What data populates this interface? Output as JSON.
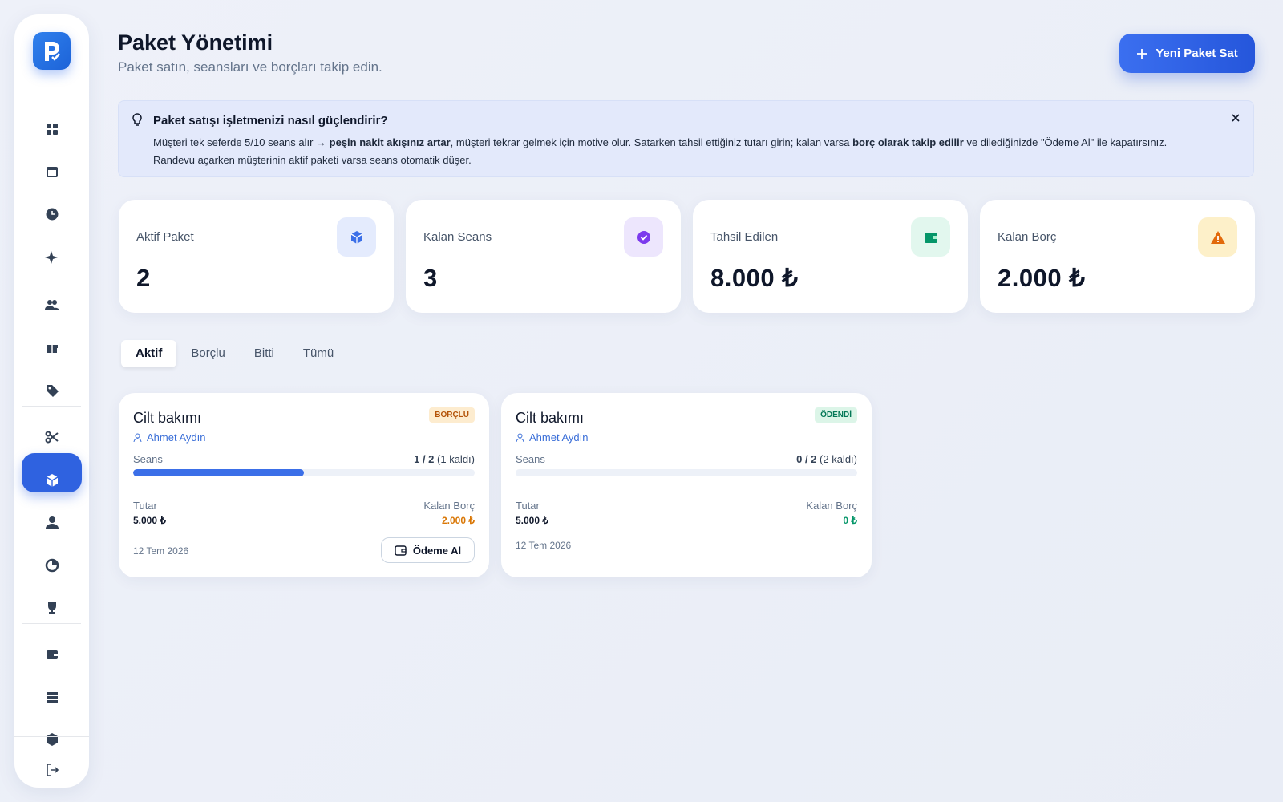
{
  "header": {
    "title": "Paket Yönetimi",
    "subtitle": "Paket satın, seansları ve borçları takip edin.",
    "button": "Yeni Paket Sat"
  },
  "info": {
    "title": "Paket satışı işletmenizi nasıl güçlendirir?",
    "segments": [
      "Müşteri tek seferde 5/10 seans alır → ",
      "peşin nakit akışınız artar",
      ", müşteri tekrar gelmek için motive olur. Satarken tahsil ettiğiniz tutarı girin; kalan varsa ",
      "borç olarak takip edilir",
      " ve dilediğinizde \"Ödeme Al\" ile kapatırsınız.",
      "Randevu açarken müşterinin aktif paketi varsa seans otomatik düşer."
    ]
  },
  "stats": [
    {
      "label": "Aktif Paket",
      "value": "2"
    },
    {
      "label": "Kalan Seans",
      "value": "3"
    },
    {
      "label": "Tahsil Edilen",
      "value": "8.000 ₺"
    },
    {
      "label": "Kalan Borç",
      "value": "2.000 ₺"
    }
  ],
  "tabs": [
    "Aktif",
    "Borçlu",
    "Bitti",
    "Tümü"
  ],
  "packages": [
    {
      "name": "Cilt bakımı",
      "status": "BORÇLU",
      "customer": "Ahmet Aydın",
      "sessions_label": "Seans",
      "sessions": "1 / 2",
      "remaining": "(1 kaldı)",
      "amount_label": "Tutar",
      "amount": "5.000 ₺",
      "debt_label": "Kalan Borç",
      "debt": "2.000 ₺",
      "date": "12 Tem 2026",
      "action": "Ödeme Al"
    },
    {
      "name": "Cilt bakımı",
      "status": "ÖDENDİ",
      "customer": "Ahmet Aydın",
      "sessions_label": "Seans",
      "sessions": "0 / 2",
      "remaining": "(2 kaldı)",
      "amount_label": "Tutar",
      "amount": "5.000 ₺",
      "debt_label": "Kalan Borç",
      "debt": "0 ₺",
      "date": "12 Tem 2026"
    }
  ]
}
